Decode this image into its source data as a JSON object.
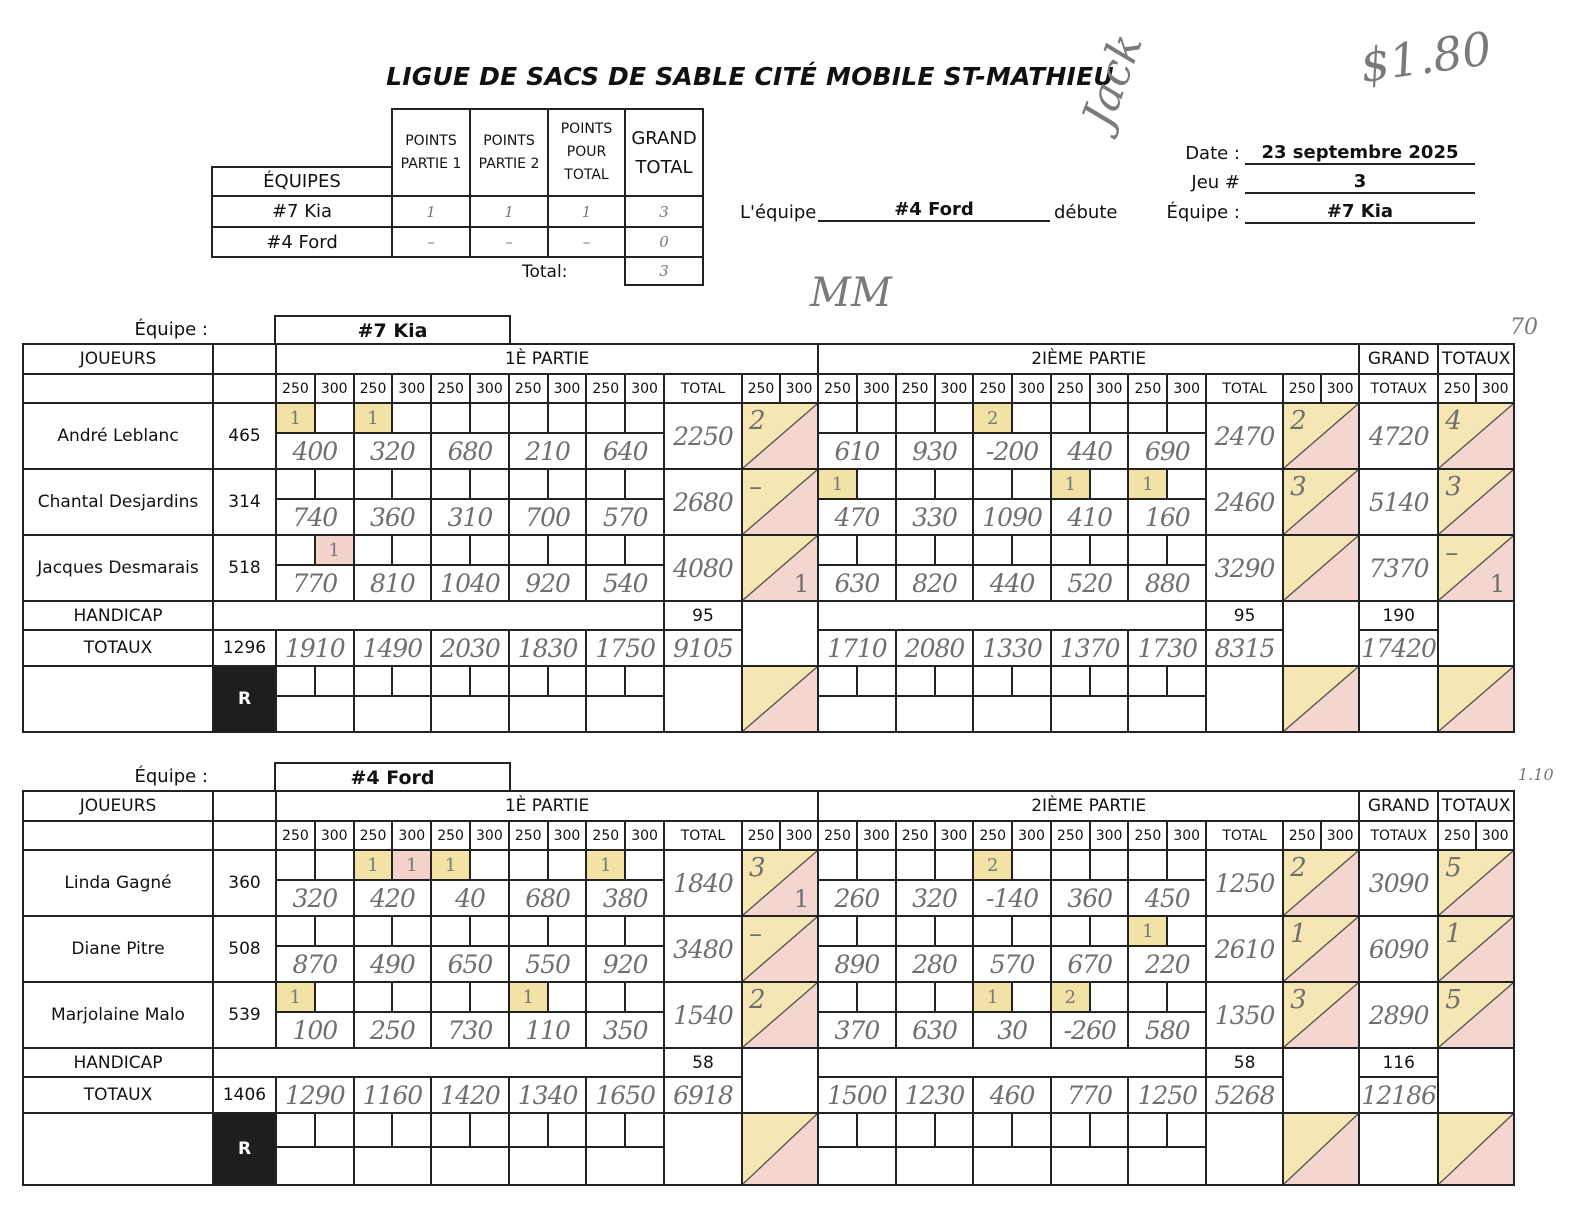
{
  "title": "LIGUE DE SACS DE SABLE CITÉ MOBILE ST-MATHIEU",
  "handwritten_notes": {
    "signature": "Jack",
    "price": "$1.80",
    "initials": "MM",
    "note_top": "70",
    "note_bottom": "1.10"
  },
  "summary": {
    "headers": [
      "ÉQUIPES",
      "POINTS PARTIE 1",
      "POINTS PARTIE 2",
      "POINTS POUR TOTAL",
      "GRAND TOTAL"
    ],
    "rows": [
      {
        "team": "#7 Kia",
        "p1": "1",
        "p2": "1",
        "total_pts": "1",
        "grand": "3"
      },
      {
        "team": "#4 Ford",
        "p1": "–",
        "p2": "–",
        "total_pts": "–",
        "grand": "0"
      }
    ],
    "total_label": "Total:",
    "total_value": "3"
  },
  "starter": {
    "prefix": "L'équipe",
    "team": "#4 Ford",
    "suffix": "débute"
  },
  "info": {
    "date_label": "Date :",
    "date": "23 septembre 2025",
    "game_label": "Jeu #",
    "game": "3",
    "team_label": "Équipe :",
    "team": "#7 Kia"
  },
  "labels": {
    "equipe": "Équipe :",
    "joueurs": "JOUEURS",
    "partie1": "1È PARTIE",
    "partie2": "2IÈME PARTIE",
    "grand": "GRAND",
    "totaux": "TOTAUX",
    "total": "TOTAL",
    "s250": "250",
    "s300": "300",
    "handicap": "HANDICAP",
    "r": "R"
  },
  "colors": {
    "highlight_yellow": "#f3e2a6",
    "highlight_pink": "#f3d3cc"
  },
  "teams": [
    {
      "name": "#7 Kia",
      "players": [
        {
          "name": "André Leblanc",
          "handicap": "465",
          "p1": {
            "marks": [
              [
                "1",
                ""
              ],
              [
                "1",
                ""
              ],
              [
                "",
                ""
              ],
              [
                "",
                ""
              ],
              [
                "",
                ""
              ]
            ],
            "scores": [
              "400",
              "320",
              "680",
              "210",
              "640"
            ],
            "total": "2250",
            "pts_top": "2",
            "pts_bottom": ""
          },
          "p2": {
            "marks": [
              [
                "",
                ""
              ],
              [
                "",
                ""
              ],
              [
                "2",
                ""
              ],
              [
                "",
                ""
              ],
              [
                "",
                ""
              ]
            ],
            "scores": [
              "610",
              "930",
              "-200",
              "440",
              "690"
            ],
            "total": "2470",
            "pts_top": "2",
            "pts_bottom": ""
          },
          "grand": "4720",
          "pts_top": "4",
          "pts_bottom": ""
        },
        {
          "name": "Chantal Desjardins",
          "handicap": "314",
          "p1": {
            "marks": [
              [
                "",
                ""
              ],
              [
                "",
                ""
              ],
              [
                "",
                ""
              ],
              [
                "",
                ""
              ],
              [
                "",
                ""
              ]
            ],
            "scores": [
              "740",
              "360",
              "310",
              "700",
              "570"
            ],
            "total": "2680",
            "pts_top": "–",
            "pts_bottom": ""
          },
          "p2": {
            "marks": [
              [
                "1",
                ""
              ],
              [
                "",
                ""
              ],
              [
                "",
                ""
              ],
              [
                "1",
                ""
              ],
              [
                "1",
                ""
              ]
            ],
            "scores": [
              "470",
              "330",
              "1090",
              "410",
              "160"
            ],
            "total": "2460",
            "pts_top": "3",
            "pts_bottom": ""
          },
          "grand": "5140",
          "pts_top": "3",
          "pts_bottom": ""
        },
        {
          "name": "Jacques Desmarais",
          "handicap": "518",
          "p1": {
            "marks": [
              [
                "",
                "1p"
              ],
              [
                "",
                ""
              ],
              [
                "",
                ""
              ],
              [
                "",
                ""
              ],
              [
                "",
                ""
              ]
            ],
            "scores": [
              "770",
              "810",
              "1040",
              "920",
              "540"
            ],
            "total": "4080",
            "pts_top": "",
            "pts_bottom": "1"
          },
          "p2": {
            "marks": [
              [
                "",
                ""
              ],
              [
                "",
                ""
              ],
              [
                "",
                ""
              ],
              [
                "",
                ""
              ],
              [
                "",
                ""
              ]
            ],
            "scores": [
              "630",
              "820",
              "440",
              "520",
              "880"
            ],
            "total": "3290",
            "pts_top": "",
            "pts_bottom": ""
          },
          "grand": "7370",
          "pts_top": "–",
          "pts_bottom": "1"
        }
      ],
      "handicap": {
        "p1": "95",
        "p2": "95",
        "grand": "190"
      },
      "totaux": {
        "handicap": "1296",
        "p1": [
          "1910",
          "1490",
          "2030",
          "1830",
          "1750"
        ],
        "p1_total": "9105",
        "p2": [
          "1710",
          "2080",
          "1330",
          "1370",
          "1730"
        ],
        "p2_total": "8315",
        "grand": "17420"
      }
    },
    {
      "name": "#4 Ford",
      "players": [
        {
          "name": "Linda Gagné",
          "handicap": "360",
          "p1": {
            "marks": [
              [
                "",
                ""
              ],
              [
                "1",
                "1p"
              ],
              [
                "1",
                ""
              ],
              [
                "",
                ""
              ],
              [
                "1",
                ""
              ]
            ],
            "scores": [
              "320",
              "420",
              "40",
              "680",
              "380"
            ],
            "total": "1840",
            "pts_top": "3",
            "pts_bottom": "1"
          },
          "p2": {
            "marks": [
              [
                "",
                ""
              ],
              [
                "",
                ""
              ],
              [
                "2",
                ""
              ],
              [
                "",
                ""
              ],
              [
                "",
                ""
              ]
            ],
            "scores": [
              "260",
              "320",
              "-140",
              "360",
              "450"
            ],
            "total": "1250",
            "pts_top": "2",
            "pts_bottom": ""
          },
          "grand": "3090",
          "pts_top": "5",
          "pts_bottom": ""
        },
        {
          "name": "Diane Pitre",
          "handicap": "508",
          "p1": {
            "marks": [
              [
                "",
                ""
              ],
              [
                "",
                ""
              ],
              [
                "",
                ""
              ],
              [
                "",
                ""
              ],
              [
                "",
                ""
              ]
            ],
            "scores": [
              "870",
              "490",
              "650",
              "550",
              "920"
            ],
            "total": "3480",
            "pts_top": "–",
            "pts_bottom": ""
          },
          "p2": {
            "marks": [
              [
                "",
                ""
              ],
              [
                "",
                ""
              ],
              [
                "",
                ""
              ],
              [
                "",
                ""
              ],
              [
                "1",
                ""
              ]
            ],
            "scores": [
              "890",
              "280",
              "570",
              "670",
              "220"
            ],
            "total": "2610",
            "pts_top": "1",
            "pts_bottom": ""
          },
          "grand": "6090",
          "pts_top": "1",
          "pts_bottom": ""
        },
        {
          "name": "Marjolaine Malo",
          "handicap": "539",
          "p1": {
            "marks": [
              [
                "1",
                ""
              ],
              [
                "",
                ""
              ],
              [
                "",
                ""
              ],
              [
                "1",
                ""
              ],
              [
                "",
                ""
              ]
            ],
            "scores": [
              "100",
              "250",
              "730",
              "110",
              "350"
            ],
            "total": "1540",
            "pts_top": "2",
            "pts_bottom": ""
          },
          "p2": {
            "marks": [
              [
                "",
                ""
              ],
              [
                "",
                ""
              ],
              [
                "1",
                ""
              ],
              [
                "2",
                ""
              ],
              [
                "",
                ""
              ]
            ],
            "scores": [
              "370",
              "630",
              "30",
              "-260",
              "580"
            ],
            "total": "1350",
            "pts_top": "3",
            "pts_bottom": ""
          },
          "grand": "2890",
          "pts_top": "5",
          "pts_bottom": ""
        }
      ],
      "handicap": {
        "p1": "58",
        "p2": "58",
        "grand": "116"
      },
      "totaux": {
        "handicap": "1406",
        "p1": [
          "1290",
          "1160",
          "1420",
          "1340",
          "1650"
        ],
        "p1_total": "6918",
        "p2": [
          "1500",
          "1230",
          "460",
          "770",
          "1250"
        ],
        "p2_total": "5268",
        "grand": "12186"
      }
    }
  ]
}
